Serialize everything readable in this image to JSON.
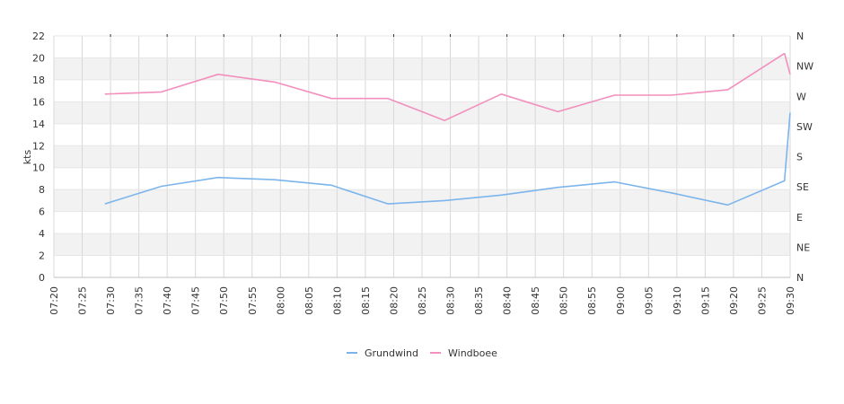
{
  "chart_data": {
    "type": "line",
    "ylabel": "kts",
    "ylim": [
      0,
      22
    ],
    "yticks": [
      0,
      2,
      4,
      6,
      8,
      10,
      12,
      14,
      16,
      18,
      20,
      22
    ],
    "x_range": [
      "07:20",
      "09:30"
    ],
    "xticks": [
      "07:20",
      "07:25",
      "07:30",
      "07:35",
      "07:40",
      "07:45",
      "07:50",
      "07:55",
      "08:00",
      "08:05",
      "08:10",
      "08:15",
      "08:20",
      "08:25",
      "08:30",
      "08:35",
      "08:40",
      "08:45",
      "08:50",
      "08:55",
      "09:00",
      "09:05",
      "09:10",
      "09:15",
      "09:20",
      "09:25",
      "09:30"
    ],
    "direction_ticks": [
      "N",
      "NE",
      "E",
      "SE",
      "S",
      "SW",
      "W",
      "NW",
      "N"
    ],
    "grid": true,
    "legend": "bottom-center",
    "series": [
      {
        "name": "Grundwind",
        "color": "#7cb5ec",
        "x": [
          "07:29",
          "07:39",
          "07:49",
          "07:59",
          "08:09",
          "08:19",
          "08:29",
          "08:39",
          "08:49",
          "08:59",
          "09:09",
          "09:19",
          "09:29",
          "09:30"
        ],
        "values": [
          6.7,
          8.3,
          9.1,
          8.9,
          8.4,
          6.7,
          7.0,
          7.5,
          8.2,
          8.7,
          7.7,
          6.6,
          8.8,
          15.0
        ]
      },
      {
        "name": "Windboee",
        "color": "#f28fbd",
        "x": [
          "07:29",
          "07:39",
          "07:49",
          "07:59",
          "08:09",
          "08:19",
          "08:29",
          "08:39",
          "08:49",
          "08:59",
          "09:09",
          "09:19",
          "09:29",
          "09:30"
        ],
        "values": [
          16.7,
          16.9,
          18.5,
          17.8,
          16.3,
          16.3,
          14.3,
          16.7,
          15.1,
          16.6,
          16.6,
          17.1,
          20.4,
          18.5
        ]
      }
    ]
  }
}
